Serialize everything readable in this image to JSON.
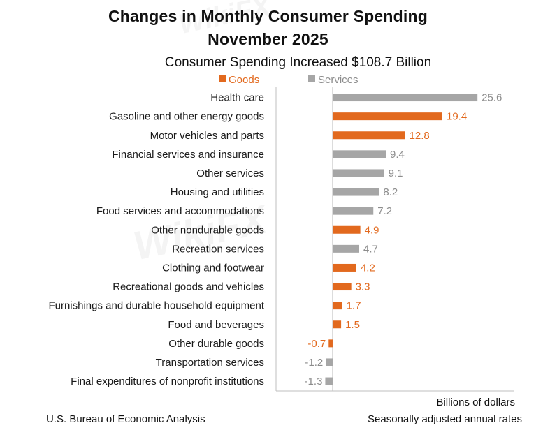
{
  "chart_data": {
    "type": "bar",
    "orientation": "horizontal",
    "title": "Changes in Monthly Consumer Spending",
    "title_line2": "November 2025",
    "subtitle": "Consumer Spending Increased $108.7 Billion",
    "legend": [
      {
        "name": "Goods",
        "color": "#e2691e"
      },
      {
        "name": "Services",
        "color": "#a6a6a6"
      }
    ],
    "legend_position": "top-left",
    "categories": [
      "Health care",
      "Gasoline and other energy goods",
      "Motor vehicles and parts",
      "Financial services and insurance",
      "Other services",
      "Housing and utilities",
      "Food services and accommodations",
      "Other nondurable goods",
      "Recreation services",
      "Clothing and footwear",
      "Recreational goods and vehicles",
      "Furnishings and durable household equipment",
      "Food and beverages",
      "Other durable goods",
      "Transportation services",
      "Final expenditures of nonprofit institutions"
    ],
    "values": [
      25.6,
      19.4,
      12.8,
      9.4,
      9.1,
      8.2,
      7.2,
      4.9,
      4.7,
      4.2,
      3.3,
      1.7,
      1.5,
      -0.7,
      -1.2,
      -1.3
    ],
    "value_labels": [
      "25.6",
      "19.4",
      "12.8",
      "9.4",
      "9.1",
      "8.2",
      "7.2",
      "4.9",
      "4.7",
      "4.2",
      "3.3",
      "1.7",
      "1.5",
      "-0.7",
      "-1.2",
      "-1.3"
    ],
    "groups": [
      "Services",
      "Goods",
      "Goods",
      "Services",
      "Services",
      "Services",
      "Services",
      "Goods",
      "Services",
      "Goods",
      "Goods",
      "Goods",
      "Goods",
      "Goods",
      "Services",
      "Services"
    ],
    "xlim": [
      -10,
      32
    ],
    "xlabel": "Billions of dollars",
    "note": "Seasonally adjusted annual rates",
    "source": "U.S. Bureau of Economic Analysis",
    "watermark": "WikiFX"
  },
  "colors": {
    "goods": "#e2691e",
    "services": "#a6a6a6",
    "services_text": "#8c8c8c",
    "axis": "#bfbfbf"
  }
}
